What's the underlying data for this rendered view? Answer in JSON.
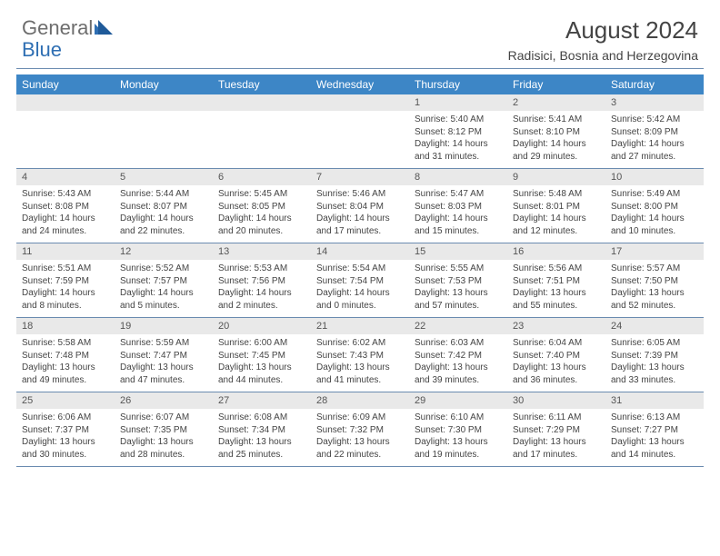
{
  "brand": {
    "part1": "General",
    "part2": "Blue"
  },
  "title": "August 2024",
  "subtitle": "Radisici, Bosnia and Herzegovina",
  "colors": {
    "header_bg": "#3d86c6",
    "header_text": "#ffffff",
    "daynum_bg": "#e9e9e9",
    "rule": "#6a8bb0",
    "brand_blue": "#2f6fb3",
    "brand_gray": "#6d6d6d",
    "body_text": "#444444"
  },
  "day_labels": [
    "Sunday",
    "Monday",
    "Tuesday",
    "Wednesday",
    "Thursday",
    "Friday",
    "Saturday"
  ],
  "weeks": [
    {
      "nums": [
        "",
        "",
        "",
        "",
        "1",
        "2",
        "3"
      ],
      "cells": [
        {
          "sunrise": "",
          "sunset": "",
          "daylight": ""
        },
        {
          "sunrise": "",
          "sunset": "",
          "daylight": ""
        },
        {
          "sunrise": "",
          "sunset": "",
          "daylight": ""
        },
        {
          "sunrise": "",
          "sunset": "",
          "daylight": ""
        },
        {
          "sunrise": "Sunrise: 5:40 AM",
          "sunset": "Sunset: 8:12 PM",
          "daylight": "Daylight: 14 hours and 31 minutes."
        },
        {
          "sunrise": "Sunrise: 5:41 AM",
          "sunset": "Sunset: 8:10 PM",
          "daylight": "Daylight: 14 hours and 29 minutes."
        },
        {
          "sunrise": "Sunrise: 5:42 AM",
          "sunset": "Sunset: 8:09 PM",
          "daylight": "Daylight: 14 hours and 27 minutes."
        }
      ]
    },
    {
      "nums": [
        "4",
        "5",
        "6",
        "7",
        "8",
        "9",
        "10"
      ],
      "cells": [
        {
          "sunrise": "Sunrise: 5:43 AM",
          "sunset": "Sunset: 8:08 PM",
          "daylight": "Daylight: 14 hours and 24 minutes."
        },
        {
          "sunrise": "Sunrise: 5:44 AM",
          "sunset": "Sunset: 8:07 PM",
          "daylight": "Daylight: 14 hours and 22 minutes."
        },
        {
          "sunrise": "Sunrise: 5:45 AM",
          "sunset": "Sunset: 8:05 PM",
          "daylight": "Daylight: 14 hours and 20 minutes."
        },
        {
          "sunrise": "Sunrise: 5:46 AM",
          "sunset": "Sunset: 8:04 PM",
          "daylight": "Daylight: 14 hours and 17 minutes."
        },
        {
          "sunrise": "Sunrise: 5:47 AM",
          "sunset": "Sunset: 8:03 PM",
          "daylight": "Daylight: 14 hours and 15 minutes."
        },
        {
          "sunrise": "Sunrise: 5:48 AM",
          "sunset": "Sunset: 8:01 PM",
          "daylight": "Daylight: 14 hours and 12 minutes."
        },
        {
          "sunrise": "Sunrise: 5:49 AM",
          "sunset": "Sunset: 8:00 PM",
          "daylight": "Daylight: 14 hours and 10 minutes."
        }
      ]
    },
    {
      "nums": [
        "11",
        "12",
        "13",
        "14",
        "15",
        "16",
        "17"
      ],
      "cells": [
        {
          "sunrise": "Sunrise: 5:51 AM",
          "sunset": "Sunset: 7:59 PM",
          "daylight": "Daylight: 14 hours and 8 minutes."
        },
        {
          "sunrise": "Sunrise: 5:52 AM",
          "sunset": "Sunset: 7:57 PM",
          "daylight": "Daylight: 14 hours and 5 minutes."
        },
        {
          "sunrise": "Sunrise: 5:53 AM",
          "sunset": "Sunset: 7:56 PM",
          "daylight": "Daylight: 14 hours and 2 minutes."
        },
        {
          "sunrise": "Sunrise: 5:54 AM",
          "sunset": "Sunset: 7:54 PM",
          "daylight": "Daylight: 14 hours and 0 minutes."
        },
        {
          "sunrise": "Sunrise: 5:55 AM",
          "sunset": "Sunset: 7:53 PM",
          "daylight": "Daylight: 13 hours and 57 minutes."
        },
        {
          "sunrise": "Sunrise: 5:56 AM",
          "sunset": "Sunset: 7:51 PM",
          "daylight": "Daylight: 13 hours and 55 minutes."
        },
        {
          "sunrise": "Sunrise: 5:57 AM",
          "sunset": "Sunset: 7:50 PM",
          "daylight": "Daylight: 13 hours and 52 minutes."
        }
      ]
    },
    {
      "nums": [
        "18",
        "19",
        "20",
        "21",
        "22",
        "23",
        "24"
      ],
      "cells": [
        {
          "sunrise": "Sunrise: 5:58 AM",
          "sunset": "Sunset: 7:48 PM",
          "daylight": "Daylight: 13 hours and 49 minutes."
        },
        {
          "sunrise": "Sunrise: 5:59 AM",
          "sunset": "Sunset: 7:47 PM",
          "daylight": "Daylight: 13 hours and 47 minutes."
        },
        {
          "sunrise": "Sunrise: 6:00 AM",
          "sunset": "Sunset: 7:45 PM",
          "daylight": "Daylight: 13 hours and 44 minutes."
        },
        {
          "sunrise": "Sunrise: 6:02 AM",
          "sunset": "Sunset: 7:43 PM",
          "daylight": "Daylight: 13 hours and 41 minutes."
        },
        {
          "sunrise": "Sunrise: 6:03 AM",
          "sunset": "Sunset: 7:42 PM",
          "daylight": "Daylight: 13 hours and 39 minutes."
        },
        {
          "sunrise": "Sunrise: 6:04 AM",
          "sunset": "Sunset: 7:40 PM",
          "daylight": "Daylight: 13 hours and 36 minutes."
        },
        {
          "sunrise": "Sunrise: 6:05 AM",
          "sunset": "Sunset: 7:39 PM",
          "daylight": "Daylight: 13 hours and 33 minutes."
        }
      ]
    },
    {
      "nums": [
        "25",
        "26",
        "27",
        "28",
        "29",
        "30",
        "31"
      ],
      "cells": [
        {
          "sunrise": "Sunrise: 6:06 AM",
          "sunset": "Sunset: 7:37 PM",
          "daylight": "Daylight: 13 hours and 30 minutes."
        },
        {
          "sunrise": "Sunrise: 6:07 AM",
          "sunset": "Sunset: 7:35 PM",
          "daylight": "Daylight: 13 hours and 28 minutes."
        },
        {
          "sunrise": "Sunrise: 6:08 AM",
          "sunset": "Sunset: 7:34 PM",
          "daylight": "Daylight: 13 hours and 25 minutes."
        },
        {
          "sunrise": "Sunrise: 6:09 AM",
          "sunset": "Sunset: 7:32 PM",
          "daylight": "Daylight: 13 hours and 22 minutes."
        },
        {
          "sunrise": "Sunrise: 6:10 AM",
          "sunset": "Sunset: 7:30 PM",
          "daylight": "Daylight: 13 hours and 19 minutes."
        },
        {
          "sunrise": "Sunrise: 6:11 AM",
          "sunset": "Sunset: 7:29 PM",
          "daylight": "Daylight: 13 hours and 17 minutes."
        },
        {
          "sunrise": "Sunrise: 6:13 AM",
          "sunset": "Sunset: 7:27 PM",
          "daylight": "Daylight: 13 hours and 14 minutes."
        }
      ]
    }
  ]
}
